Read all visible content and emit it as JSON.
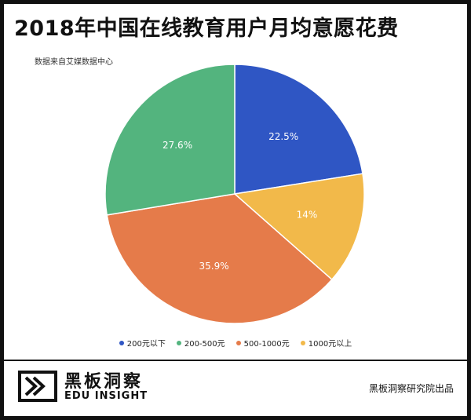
{
  "title": "2018年中国在线教育用户月均意愿花费",
  "source": "数据来自艾媒数据中心",
  "chart_data": {
    "type": "pie",
    "title": "2018年中国在线教育用户月均意愿花费",
    "categories": [
      "200元以下",
      "200-500元",
      "500-1000元",
      "1000元以上"
    ],
    "values": [
      22.5,
      27.6,
      35.9,
      14
    ],
    "labels": [
      "22.5%",
      "27.6%",
      "35.9%",
      "14%"
    ],
    "slice_order_clockwise_from_top": [
      "200元以下",
      "1000元以上",
      "500-1000元",
      "200-500元"
    ],
    "colors": {
      "200元以下": "#2f56c4",
      "200-500元": "#53b47e",
      "500-1000元": "#e57b4a",
      "1000元以上": "#f2b94a"
    },
    "legend_placement": "bottom"
  },
  "legend": [
    {
      "label": "200元以下",
      "color": "#2f56c4"
    },
    {
      "label": "200-500元",
      "color": "#53b47e"
    },
    {
      "label": "500-1000元",
      "color": "#e57b4a"
    },
    {
      "label": "1000元以上",
      "color": "#f2b94a"
    }
  ],
  "footer": {
    "brand_cn": "黑板洞察",
    "brand_en": "EDU INSIGHT",
    "publisher": "黑板洞察研究院出品"
  }
}
